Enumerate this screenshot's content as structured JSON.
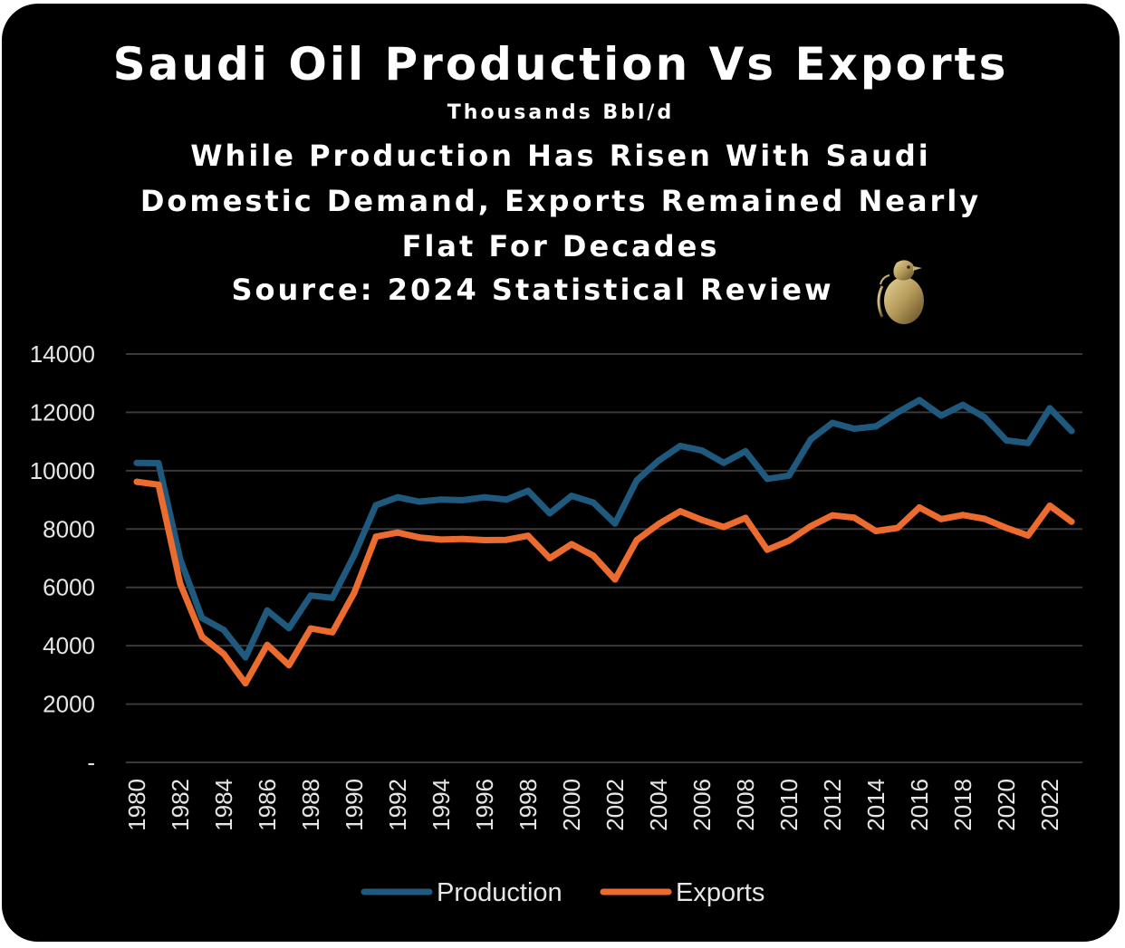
{
  "header": {
    "title": "Saudi Oil Production Vs Exports",
    "units": "Thousands Bbl/d",
    "subtitle": "While Production Has Risen With Saudi Domestic Demand, Exports Remained Nearly Flat For Decades",
    "source": "Source: 2024 Statistical Review"
  },
  "logo": {
    "icon": "bird-on-egg-icon",
    "color": "#b59a5a"
  },
  "colors": {
    "background": "#000000",
    "production": "#1f5a7e",
    "exports": "#ec6b2f",
    "grid": "#3a3a3a",
    "text": "#e6e6e6"
  },
  "chart_data": {
    "type": "line",
    "title": "Saudi Oil Production Vs Exports",
    "ylabel": "Thousands Bbl/d",
    "xlabel": "",
    "ylim": [
      0,
      14000
    ],
    "yticks": [
      0,
      2000,
      4000,
      6000,
      8000,
      10000,
      12000,
      14000
    ],
    "ytick_labels": [
      "-",
      "2000",
      "4000",
      "6000",
      "8000",
      "10000",
      "12000",
      "14000"
    ],
    "xtick_labels": [
      "1980",
      "1982",
      "1984",
      "1986",
      "1988",
      "1990",
      "1992",
      "1994",
      "1996",
      "1998",
      "2000",
      "2002",
      "2004",
      "2006",
      "2008",
      "2010",
      "2012",
      "2014",
      "2016",
      "2018",
      "2020",
      "2022"
    ],
    "x": [
      1980,
      1981,
      1982,
      1983,
      1984,
      1985,
      1986,
      1987,
      1988,
      1989,
      1990,
      1991,
      1992,
      1993,
      1994,
      1995,
      1996,
      1997,
      1998,
      1999,
      2000,
      2001,
      2002,
      2003,
      2004,
      2005,
      2006,
      2007,
      2008,
      2009,
      2010,
      2011,
      2012,
      2013,
      2014,
      2015,
      2016,
      2017,
      2018,
      2019,
      2020,
      2021,
      2022,
      2023
    ],
    "grid": true,
    "legend_position": "bottom-center",
    "series": [
      {
        "name": "Production",
        "color": "#1f5a7e",
        "values": [
          10270,
          10260,
          6960,
          4950,
          4540,
          3600,
          5210,
          4600,
          5720,
          5640,
          7100,
          8820,
          9090,
          8940,
          9010,
          8990,
          9090,
          9010,
          9310,
          8540,
          9140,
          8910,
          8190,
          9670,
          10340,
          10850,
          10690,
          10270,
          10670,
          9720,
          9830,
          11070,
          11640,
          11440,
          11520,
          12000,
          12420,
          11890,
          12260,
          11830,
          11040,
          10950,
          12140,
          11360
        ]
      },
      {
        "name": "Exports",
        "color": "#ec6b2f",
        "values": [
          9620,
          9520,
          6120,
          4310,
          3720,
          2710,
          4030,
          3330,
          4590,
          4460,
          5810,
          7740,
          7880,
          7710,
          7640,
          7660,
          7620,
          7630,
          7770,
          7000,
          7480,
          7090,
          6270,
          7620,
          8170,
          8610,
          8310,
          8070,
          8380,
          7290,
          7600,
          8100,
          8470,
          8390,
          7930,
          8040,
          8740,
          8340,
          8480,
          8350,
          8040,
          7780,
          8800,
          8250
        ]
      }
    ]
  }
}
